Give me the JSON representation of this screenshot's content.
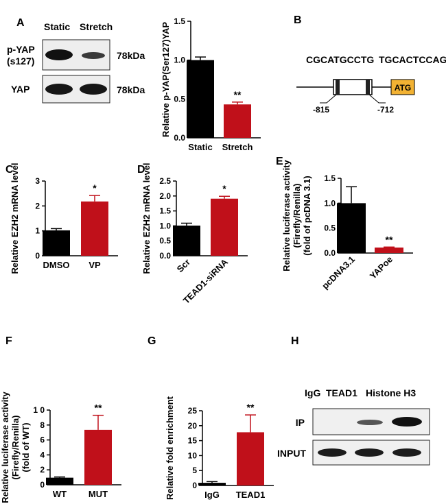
{
  "colors": {
    "control": "#000000",
    "treated": "#c0101a",
    "atg_box": "#f2b233"
  },
  "panels": {
    "A": {
      "letter": "A",
      "blot": {
        "header": [
          "Static",
          "Stretch"
        ],
        "rows": [
          {
            "label_lines": [
              "p-YAP",
              "(s127)"
            ],
            "size": "78kDa"
          },
          {
            "label_lines": [
              "YAP"
            ],
            "size": "78kDa"
          }
        ]
      }
    },
    "B": {
      "letter": "B",
      "seq_left": "CGCATGCCTG",
      "seq_right": "TGCACTCCAG",
      "pos_left": "-815",
      "pos_right": "-712",
      "atg": "ATG"
    },
    "H": {
      "letter": "H",
      "header": [
        "IgG",
        "TEAD1",
        "Histone H3"
      ],
      "rows": [
        "IP",
        "INPUT"
      ]
    }
  },
  "chart_data": [
    {
      "panel": "A",
      "type": "bar",
      "categories": [
        "Static",
        "Stretch"
      ],
      "values": [
        1.0,
        0.43
      ],
      "errors": [
        0.04,
        0.03
      ],
      "ylabel": "Relative p-YAP(Ser127)YAP",
      "ylim": [
        0,
        1.5
      ],
      "yticks": [
        "0.0",
        "0.5",
        "1.0",
        "1.5"
      ],
      "significance": [
        "",
        "**"
      ]
    },
    {
      "panel": "C",
      "type": "bar",
      "categories": [
        "DMSO",
        "VP"
      ],
      "values": [
        1.02,
        2.18
      ],
      "errors": [
        0.07,
        0.24
      ],
      "ylabel": "Relative EZH2 mRNA level",
      "ylim": [
        0,
        3
      ],
      "yticks": [
        "0",
        "1",
        "2",
        "3"
      ],
      "significance": [
        "",
        "*"
      ]
    },
    {
      "panel": "D",
      "type": "bar",
      "categories": [
        "Scr",
        "TEAD1-siRNA"
      ],
      "values": [
        1.01,
        1.91
      ],
      "errors": [
        0.08,
        0.08
      ],
      "ylabel": "Relative EZH2 mRNA level",
      "ylim": [
        0,
        2.5
      ],
      "yticks": [
        "0.0",
        "0.5",
        "1.0",
        "1.5",
        "2.0",
        "2.5"
      ],
      "significance": [
        "",
        "*"
      ]
    },
    {
      "panel": "E",
      "type": "bar",
      "categories": [
        "pcDNA3.1",
        "YAPoe"
      ],
      "values": [
        1.0,
        0.11
      ],
      "errors": [
        0.33,
        0.01
      ],
      "ylabel_lines": [
        "Relative luciferase activity",
        "(Firefly/Renilla)",
        "(fold of pcDNA 3.1)"
      ],
      "ylim": [
        0,
        1.5
      ],
      "yticks": [
        "0.0",
        "0.5",
        "1.0",
        "1.5"
      ],
      "significance": [
        "",
        "**"
      ]
    },
    {
      "panel": "F",
      "type": "bar",
      "categories": [
        "WT",
        "MUT"
      ],
      "values": [
        0.95,
        7.35
      ],
      "errors": [
        0.1,
        1.95
      ],
      "ylabel_lines": [
        "Relative luciferase activity",
        "(Firefly/Renilla)",
        "(fold of WT)"
      ],
      "ylim": [
        0,
        10
      ],
      "yticks": [
        "0",
        "2",
        "4",
        "6",
        "8",
        "1 0"
      ],
      "significance": [
        "",
        "**"
      ]
    },
    {
      "panel": "G",
      "type": "bar",
      "categories": [
        "IgG",
        "TEAD1"
      ],
      "values": [
        0.9,
        17.8
      ],
      "errors": [
        0.4,
        5.8
      ],
      "ylabel": "Relative fold enrichment",
      "ylim": [
        0,
        25
      ],
      "yticks": [
        "0",
        "5",
        "10",
        "15",
        "20",
        "25"
      ],
      "significance": [
        "",
        "**"
      ]
    }
  ]
}
